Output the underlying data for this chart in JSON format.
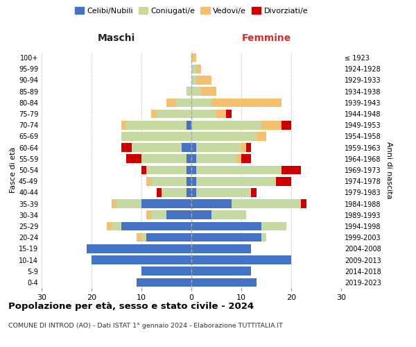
{
  "age_groups": [
    "0-4",
    "5-9",
    "10-14",
    "15-19",
    "20-24",
    "25-29",
    "30-34",
    "35-39",
    "40-44",
    "45-49",
    "50-54",
    "55-59",
    "60-64",
    "65-69",
    "70-74",
    "75-79",
    "80-84",
    "85-89",
    "90-94",
    "95-99",
    "100+"
  ],
  "birth_years": [
    "2019-2023",
    "2014-2018",
    "2009-2013",
    "2004-2008",
    "1999-2003",
    "1994-1998",
    "1989-1993",
    "1984-1988",
    "1979-1983",
    "1974-1978",
    "1969-1973",
    "1964-1968",
    "1959-1963",
    "1954-1958",
    "1949-1953",
    "1944-1948",
    "1939-1943",
    "1934-1938",
    "1929-1933",
    "1924-1928",
    "≤ 1923"
  ],
  "male": {
    "celibi": [
      11,
      10,
      20,
      21,
      9,
      14,
      5,
      10,
      1,
      1,
      1,
      1,
      2,
      0,
      1,
      0,
      0,
      0,
      0,
      0,
      0
    ],
    "coniugati": [
      0,
      0,
      0,
      0,
      1,
      2,
      3,
      5,
      5,
      7,
      8,
      9,
      10,
      14,
      12,
      7,
      3,
      1,
      0,
      0,
      0
    ],
    "vedovi": [
      0,
      0,
      0,
      0,
      1,
      1,
      1,
      1,
      0,
      1,
      0,
      0,
      0,
      0,
      1,
      1,
      2,
      0,
      0,
      0,
      0
    ],
    "divorziati": [
      0,
      0,
      0,
      0,
      0,
      0,
      0,
      0,
      1,
      0,
      1,
      3,
      2,
      0,
      0,
      0,
      0,
      0,
      0,
      0,
      0
    ]
  },
  "female": {
    "nubili": [
      13,
      12,
      20,
      12,
      14,
      14,
      4,
      8,
      1,
      1,
      1,
      1,
      1,
      0,
      0,
      0,
      0,
      0,
      0,
      0,
      0
    ],
    "coniugate": [
      0,
      0,
      0,
      0,
      1,
      5,
      7,
      14,
      11,
      16,
      17,
      8,
      9,
      13,
      14,
      5,
      4,
      2,
      1,
      1,
      0
    ],
    "vedove": [
      0,
      0,
      0,
      0,
      0,
      0,
      0,
      0,
      0,
      0,
      0,
      1,
      1,
      2,
      4,
      2,
      14,
      3,
      3,
      1,
      1
    ],
    "divorziate": [
      0,
      0,
      0,
      0,
      0,
      0,
      0,
      1,
      1,
      3,
      4,
      2,
      1,
      0,
      2,
      1,
      0,
      0,
      0,
      0,
      0
    ]
  },
  "colors": {
    "celibi": "#4472c4",
    "coniugati": "#c5d9a0",
    "vedovi": "#f5c06e",
    "divorziati": "#cc0000"
  },
  "xlim": 30,
  "title": "Popolazione per età, sesso e stato civile - 2024",
  "subtitle": "COMUNE DI INTROD (AO) - Dati ISTAT 1° gennaio 2024 - Elaborazione TUTTITALIA.IT",
  "ylabel_left": "Fasce di età",
  "ylabel_right": "Anni di nascita",
  "xlabel_left": "Maschi",
  "xlabel_right": "Femmine",
  "legend_labels": [
    "Celibi/Nubili",
    "Coniugati/e",
    "Vedovi/e",
    "Divorziati/e"
  ],
  "background_color": "#ffffff",
  "grid_color": "#cccccc"
}
